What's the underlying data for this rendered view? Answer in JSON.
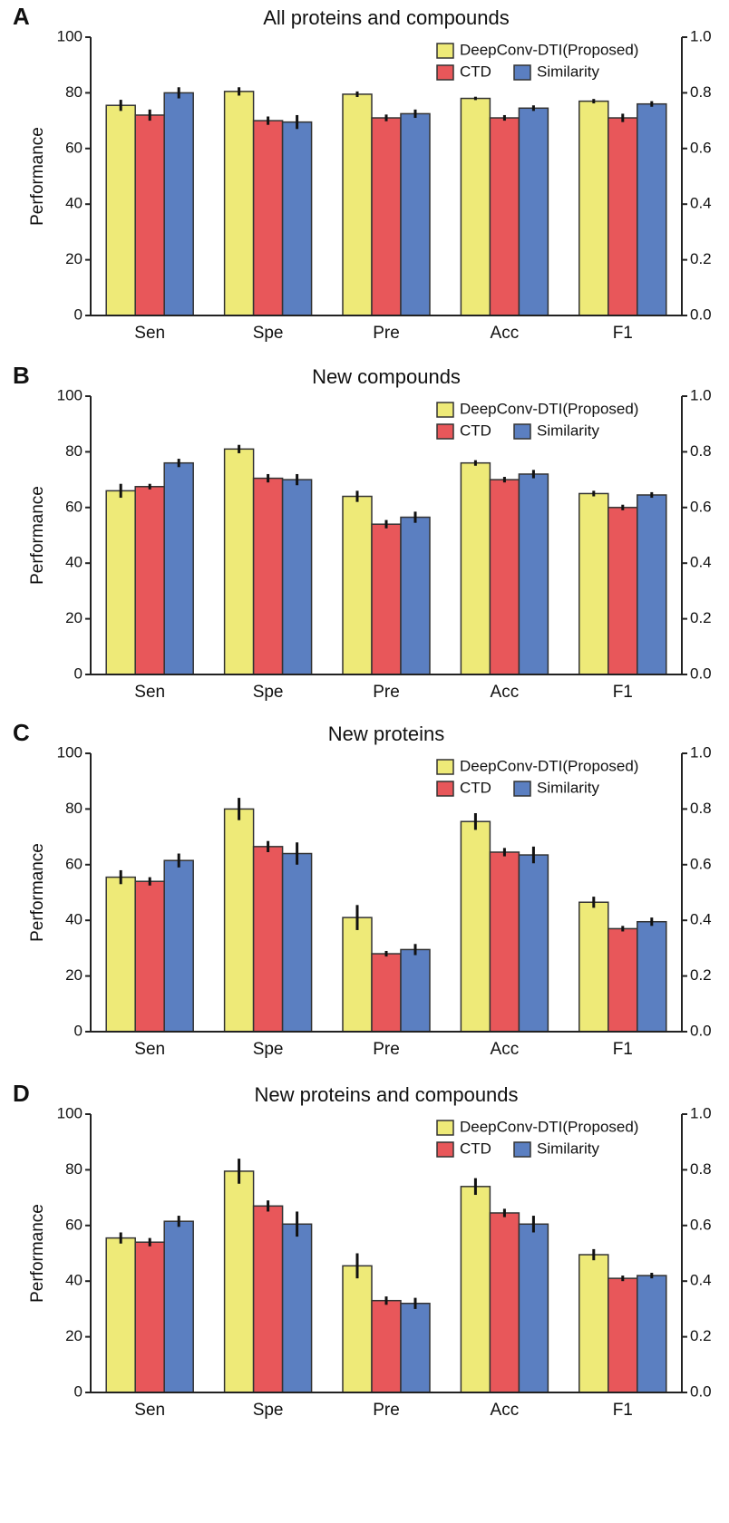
{
  "chart_data": [
    {
      "type": "bar",
      "panel": "A",
      "title": "All proteins and compounds",
      "ylabel": "Performance",
      "categories": [
        "Sen",
        "Spe",
        "Pre",
        "Acc",
        "F1"
      ],
      "series": [
        {
          "name": "DeepConv-DTI(Proposed)",
          "color": "#eeea78",
          "values": [
            75.5,
            80.5,
            79.5,
            78,
            77
          ],
          "errors": [
            2,
            1.5,
            1,
            0.6,
            0.8
          ]
        },
        {
          "name": "CTD",
          "color": "#e8575a",
          "values": [
            72,
            70,
            71,
            71,
            71
          ],
          "errors": [
            2,
            1.5,
            1.2,
            1,
            1.5
          ]
        },
        {
          "name": "Similarity",
          "color": "#5b7fc1",
          "values": [
            80,
            69.5,
            72.5,
            74.5,
            76
          ],
          "errors": [
            2,
            2.5,
            1.5,
            1,
            1
          ]
        }
      ],
      "ylim": [
        0,
        100
      ],
      "yticks": [
        0,
        20,
        40,
        60,
        80,
        100
      ],
      "y2lim": [
        0,
        1
      ],
      "y2ticks": [
        {
          "value": 0,
          "label": "0.0"
        },
        {
          "value": 0.2,
          "label": "0.2"
        },
        {
          "value": 0.4,
          "label": "0.4"
        },
        {
          "value": 0.6,
          "label": "0.6"
        },
        {
          "value": 0.8,
          "label": "0.8"
        },
        {
          "value": 1,
          "label": "1.0"
        }
      ],
      "legend": "upper right"
    },
    {
      "type": "bar",
      "panel": "B",
      "title": "New compounds",
      "ylabel": "Performance",
      "categories": [
        "Sen",
        "Spe",
        "Pre",
        "Acc",
        "F1"
      ],
      "series": [
        {
          "name": "DeepConv-DTI(Proposed)",
          "color": "#eeea78",
          "values": [
            66,
            81,
            64,
            76,
            65
          ],
          "errors": [
            2.5,
            1.5,
            2,
            1,
            1
          ]
        },
        {
          "name": "CTD",
          "color": "#e8575a",
          "values": [
            67.5,
            70.5,
            54,
            70,
            60
          ],
          "errors": [
            1,
            1.5,
            1.5,
            1,
            1
          ]
        },
        {
          "name": "Similarity",
          "color": "#5b7fc1",
          "values": [
            76,
            70,
            56.5,
            72,
            64.5
          ],
          "errors": [
            1.5,
            2,
            2,
            1.5,
            1
          ]
        }
      ],
      "ylim": [
        0,
        100
      ],
      "yticks": [
        0,
        20,
        40,
        60,
        80,
        100
      ],
      "y2lim": [
        0,
        1
      ],
      "y2ticks": [
        {
          "value": 0,
          "label": "0.0"
        },
        {
          "value": 0.2,
          "label": "0.2"
        },
        {
          "value": 0.4,
          "label": "0.4"
        },
        {
          "value": 0.6,
          "label": "0.6"
        },
        {
          "value": 0.8,
          "label": "0.8"
        },
        {
          "value": 1,
          "label": "1.0"
        }
      ],
      "legend": "upper right"
    },
    {
      "type": "bar",
      "panel": "C",
      "title": "New proteins",
      "ylabel": "Performance",
      "categories": [
        "Sen",
        "Spe",
        "Pre",
        "Acc",
        "F1"
      ],
      "series": [
        {
          "name": "DeepConv-DTI(Proposed)",
          "color": "#eeea78",
          "values": [
            55.5,
            80,
            41,
            75.5,
            46.5
          ],
          "errors": [
            2.5,
            4,
            4.5,
            3,
            2
          ]
        },
        {
          "name": "CTD",
          "color": "#e8575a",
          "values": [
            54,
            66.5,
            28,
            64.5,
            37
          ],
          "errors": [
            1.5,
            2,
            1,
            1.5,
            1
          ]
        },
        {
          "name": "Similarity",
          "color": "#5b7fc1",
          "values": [
            61.5,
            64,
            29.5,
            63.5,
            39.5
          ],
          "errors": [
            2.5,
            4,
            2,
            3,
            1.5
          ]
        }
      ],
      "ylim": [
        0,
        100
      ],
      "yticks": [
        0,
        20,
        40,
        60,
        80,
        100
      ],
      "y2lim": [
        0,
        1
      ],
      "y2ticks": [
        {
          "value": 0,
          "label": "0.0"
        },
        {
          "value": 0.2,
          "label": "0.2"
        },
        {
          "value": 0.4,
          "label": "0.4"
        },
        {
          "value": 0.6,
          "label": "0.6"
        },
        {
          "value": 0.8,
          "label": "0.8"
        },
        {
          "value": 1,
          "label": "1.0"
        }
      ],
      "legend": "upper right"
    },
    {
      "type": "bar",
      "panel": "D",
      "title": "New proteins and compounds",
      "ylabel": "Performance",
      "categories": [
        "Sen",
        "Spe",
        "Pre",
        "Acc",
        "F1"
      ],
      "series": [
        {
          "name": "DeepConv-DTI(Proposed)",
          "color": "#eeea78",
          "values": [
            55.5,
            79.5,
            45.5,
            74,
            49.5
          ],
          "errors": [
            2,
            4.5,
            4.5,
            3,
            2
          ]
        },
        {
          "name": "CTD",
          "color": "#e8575a",
          "values": [
            54,
            67,
            33,
            64.5,
            41
          ],
          "errors": [
            1.5,
            2,
            1.5,
            1.5,
            1
          ]
        },
        {
          "name": "Similarity",
          "color": "#5b7fc1",
          "values": [
            61.5,
            60.5,
            32,
            60.5,
            42
          ],
          "errors": [
            2,
            4.5,
            2,
            3,
            1
          ]
        }
      ],
      "ylim": [
        0,
        100
      ],
      "yticks": [
        0,
        20,
        40,
        60,
        80,
        100
      ],
      "y2lim": [
        0,
        1
      ],
      "y2ticks": [
        {
          "value": 0,
          "label": "0.0"
        },
        {
          "value": 0.2,
          "label": "0.2"
        },
        {
          "value": 0.4,
          "label": "0.4"
        },
        {
          "value": 0.6,
          "label": "0.6"
        },
        {
          "value": 0.8,
          "label": "0.8"
        },
        {
          "value": 1,
          "label": "1.0"
        }
      ],
      "legend": "upper right"
    }
  ]
}
